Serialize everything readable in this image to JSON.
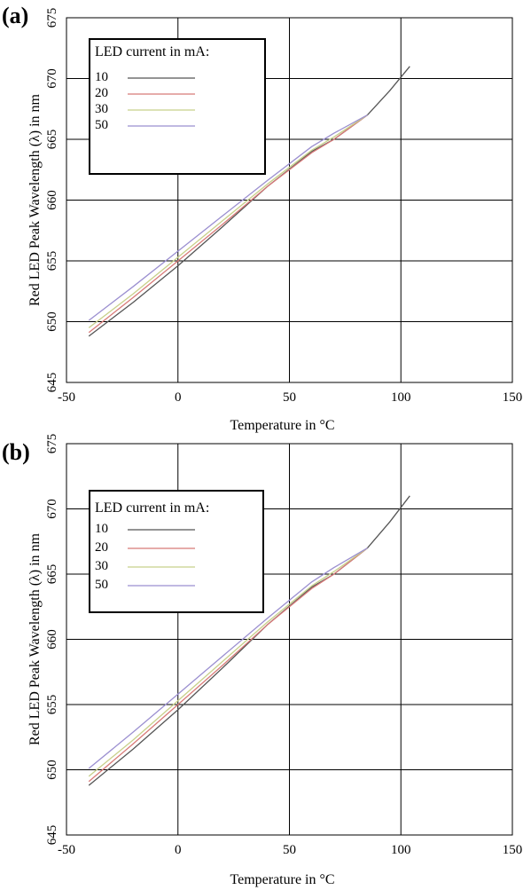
{
  "chart_data": [
    {
      "type": "line",
      "panel_label": "(a)",
      "title": "",
      "xlabel": "Temperature in °C",
      "ylabel": "Red LED Peak Wavelength (λ) in nm",
      "xlim": [
        -50,
        150
      ],
      "ylim": [
        645,
        675
      ],
      "xticks": [
        "-50",
        "0",
        "50",
        "100",
        "150"
      ],
      "yticks": [
        "645",
        "650",
        "655",
        "660",
        "665",
        "670",
        "675"
      ],
      "grid": true,
      "legend": {
        "title": "LED current in mA:",
        "position": "top-left"
      },
      "series": [
        {
          "name": "10",
          "color": "#555555",
          "x": [
            -40,
            -20,
            0,
            20,
            40,
            60,
            70,
            85,
            95,
            104
          ],
          "y": [
            648.8,
            651.6,
            654.6,
            657.8,
            661.1,
            664.0,
            665.0,
            667.0,
            669.0,
            671.0
          ]
        },
        {
          "name": "20",
          "color": "#d87a78",
          "x": [
            -40,
            -20,
            0,
            20,
            40,
            60,
            70,
            85
          ],
          "y": [
            649.1,
            652.0,
            655.0,
            658.0,
            661.1,
            663.9,
            665.0,
            667.0
          ]
        },
        {
          "name": "30",
          "color": "#c8d08a",
          "x": [
            -40,
            -20,
            0,
            20,
            40,
            60,
            70,
            85
          ],
          "y": [
            649.5,
            652.3,
            655.3,
            658.3,
            661.3,
            664.1,
            665.2,
            667.0
          ]
        },
        {
          "name": "50",
          "color": "#9b8fd0",
          "x": [
            -40,
            -20,
            0,
            20,
            40,
            60,
            70,
            85
          ],
          "y": [
            650.1,
            652.9,
            655.8,
            658.7,
            661.6,
            664.4,
            665.5,
            667.0
          ]
        }
      ]
    },
    {
      "type": "line",
      "panel_label": "(b)",
      "title": "",
      "xlabel": "Temperature in °C",
      "ylabel": "Red LED Peak Wavelength (λ) in nm",
      "xlim": [
        -50,
        150
      ],
      "ylim": [
        645,
        675
      ],
      "xticks": [
        "-50",
        "0",
        "50",
        "100",
        "150"
      ],
      "yticks": [
        "645",
        "650",
        "655",
        "660",
        "665",
        "670",
        "675"
      ],
      "grid": true,
      "legend": {
        "title": "LED current in mA:",
        "position": "top-left"
      },
      "series": [
        {
          "name": "10",
          "color": "#555555",
          "x": [
            -40,
            -20,
            0,
            20,
            40,
            60,
            70,
            85,
            95,
            104
          ],
          "y": [
            648.8,
            651.6,
            654.6,
            657.8,
            661.1,
            664.0,
            665.0,
            667.0,
            669.0,
            671.0
          ]
        },
        {
          "name": "20",
          "color": "#d87a78",
          "x": [
            -40,
            -20,
            0,
            20,
            40,
            60,
            70,
            85
          ],
          "y": [
            649.1,
            652.0,
            655.0,
            658.0,
            661.1,
            663.9,
            665.0,
            667.0
          ]
        },
        {
          "name": "30",
          "color": "#c8d08a",
          "x": [
            -40,
            -20,
            0,
            20,
            40,
            60,
            70,
            85
          ],
          "y": [
            649.5,
            652.3,
            655.3,
            658.3,
            661.3,
            664.1,
            665.2,
            667.0
          ]
        },
        {
          "name": "50",
          "color": "#9b8fd0",
          "x": [
            -40,
            -20,
            0,
            20,
            40,
            60,
            70,
            85
          ],
          "y": [
            650.1,
            652.9,
            655.8,
            658.7,
            661.6,
            664.4,
            665.5,
            667.0
          ]
        }
      ]
    }
  ]
}
